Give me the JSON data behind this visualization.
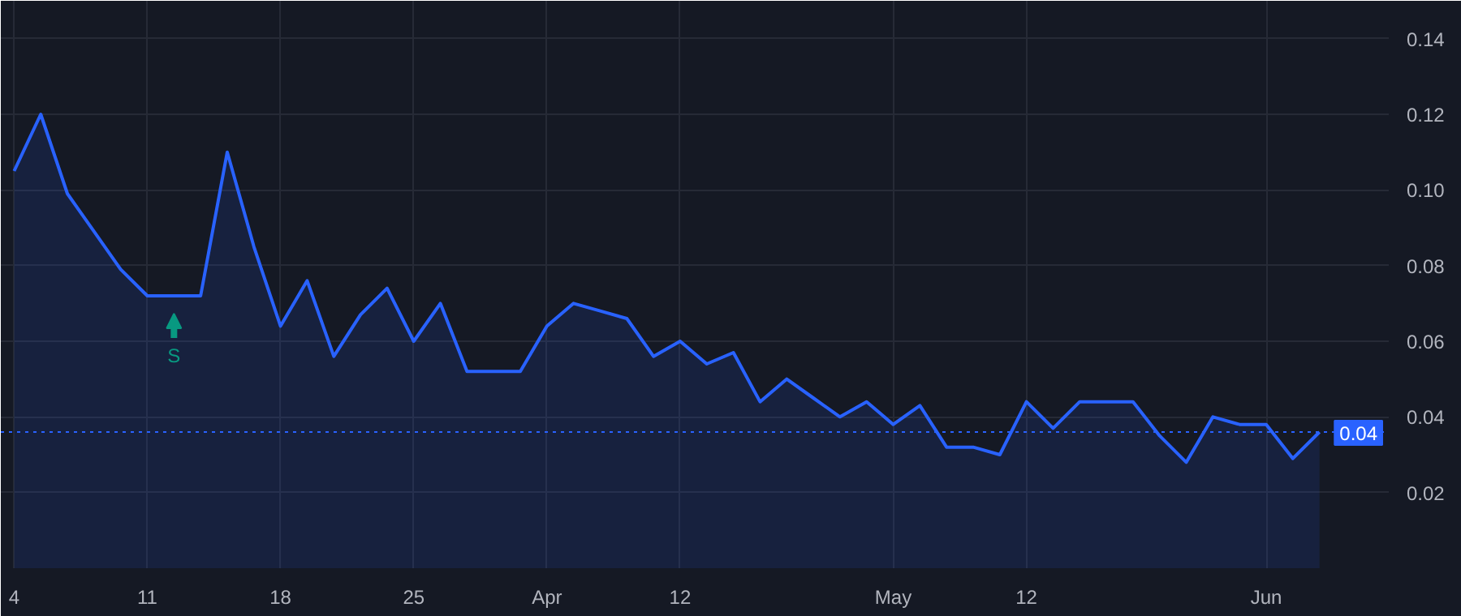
{
  "chart_data": {
    "type": "area",
    "categories": [
      "4",
      null,
      null,
      null,
      null,
      "11",
      null,
      null,
      null,
      null,
      "18",
      null,
      null,
      null,
      null,
      "25",
      null,
      null,
      null,
      null,
      "Apr",
      null,
      null,
      null,
      null,
      "12",
      null,
      null,
      null,
      null,
      null,
      null,
      null,
      "May",
      null,
      null,
      null,
      null,
      "12",
      null,
      null,
      null,
      null,
      null,
      null,
      null,
      null,
      "Jun",
      null,
      null
    ],
    "series": [
      {
        "color": "#2962ff",
        "values": [
          0.105,
          0.12,
          0.099,
          0.089,
          0.079,
          0.072,
          0.072,
          0.072,
          0.11,
          0.085,
          0.064,
          0.076,
          0.056,
          0.067,
          0.074,
          0.06,
          0.07,
          0.052,
          0.052,
          0.052,
          0.064,
          0.07,
          0.068,
          0.066,
          0.056,
          0.06,
          0.054,
          0.057,
          0.044,
          0.05,
          0.045,
          0.04,
          0.044,
          0.038,
          0.043,
          0.032,
          0.032,
          0.03,
          0.044,
          0.037,
          0.044,
          0.044,
          0.044,
          0.035,
          0.028,
          0.04,
          0.038,
          0.038,
          0.029,
          0.036
        ]
      }
    ],
    "ylim": [
      0,
      0.15
    ],
    "yticks": [
      {
        "value": 0.02,
        "label": "0.02"
      },
      {
        "value": 0.04,
        "label": "0.04"
      },
      {
        "value": 0.06,
        "label": "0.06"
      },
      {
        "value": 0.08,
        "label": "0.08"
      },
      {
        "value": 0.1,
        "label": "0.10"
      },
      {
        "value": 0.12,
        "label": "0.12"
      },
      {
        "value": 0.14,
        "label": "0.14"
      }
    ],
    "grid": true,
    "ref_lines": [
      {
        "axis": "y",
        "value": 0.036,
        "label": "0.04",
        "color": "#2962ff",
        "line_style": "dotted"
      }
    ],
    "annotations": [
      {
        "text": "S",
        "y": 0.072
      }
    ]
  }
}
